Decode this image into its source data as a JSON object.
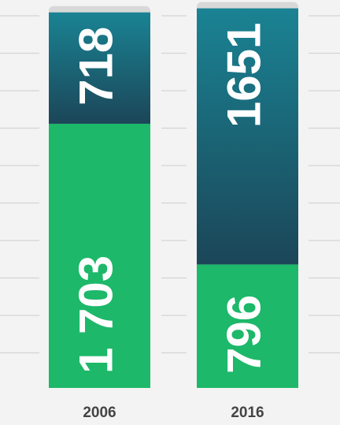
{
  "chart_data": {
    "type": "stacked-bar",
    "categories": [
      "2006",
      "2016"
    ],
    "series": [
      {
        "color": "#1db86a",
        "values": [
          1703,
          796
        ],
        "value_labels": [
          "1 703",
          "796"
        ]
      },
      {
        "color": "#1a6f80",
        "values": [
          718,
          1651
        ],
        "value_labels": [
          "718",
          "1651"
        ]
      }
    ],
    "ylim": [
      0,
      2450
    ]
  }
}
